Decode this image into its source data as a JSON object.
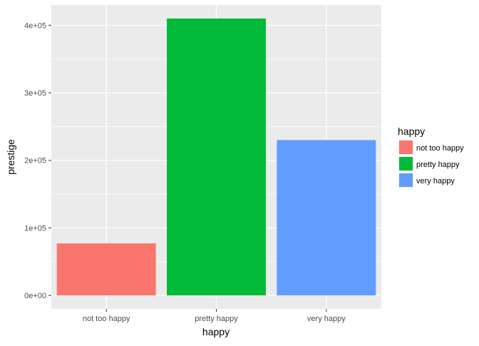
{
  "chart_data": {
    "type": "bar",
    "title": "",
    "xlabel": "happy",
    "ylabel": "prestige",
    "categories": [
      "not too happy",
      "pretty happy",
      "very happy"
    ],
    "values": [
      77000,
      410000,
      230000
    ],
    "ylim": [
      -20000,
      430000
    ],
    "y_ticks": [
      0,
      100000,
      200000,
      300000,
      400000
    ],
    "y_tick_labels": [
      "0e+00",
      "1e+05",
      "2e+05",
      "3e+05",
      "4e+05"
    ],
    "grid": true,
    "legend": {
      "title": "happy",
      "position": "right",
      "entries": [
        "not too happy",
        "pretty happy",
        "very happy"
      ]
    },
    "colors": [
      "#F8766D",
      "#00BA38",
      "#619CFF"
    ],
    "panel_background": "#EBEBEB",
    "grid_color": "#FFFFFF"
  }
}
